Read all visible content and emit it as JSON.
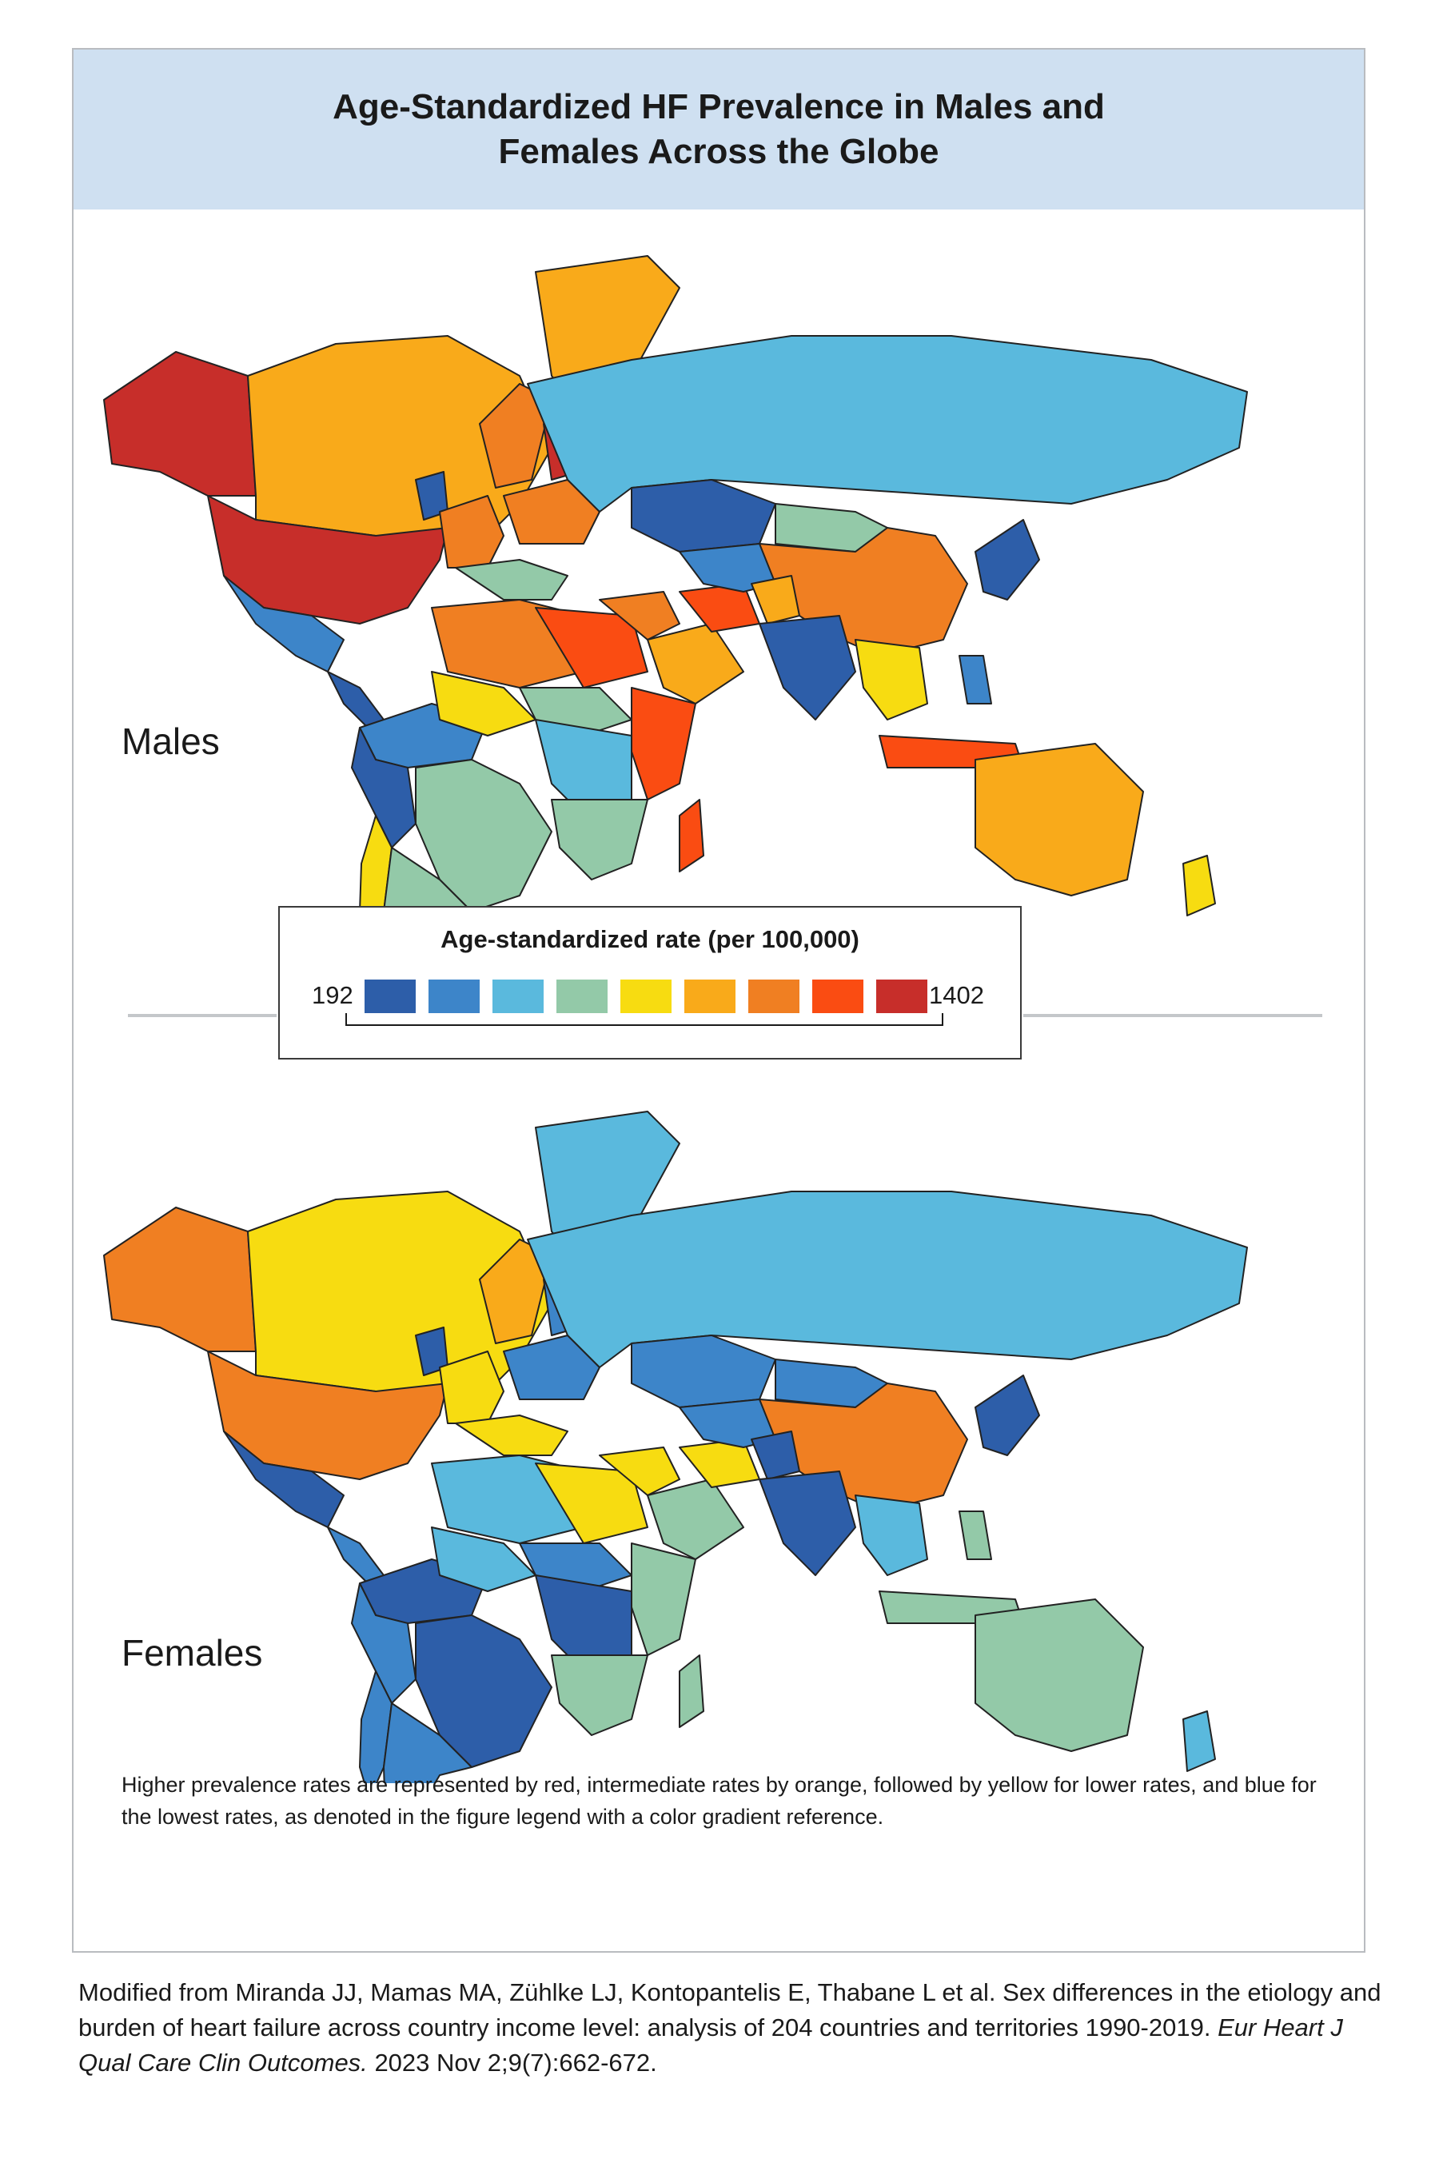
{
  "title": {
    "line1": "Age-Standardized HF Prevalence in Males and",
    "line2": "Females Across the Globe"
  },
  "panels": [
    {
      "label": "Males"
    },
    {
      "label": "Females"
    }
  ],
  "legend": {
    "title": "Age-standardized rate (per 100,000)",
    "min_label": "192",
    "max_label": "1402",
    "colors": [
      "#2d5ea9",
      "#3d85c9",
      "#5ab9dd",
      "#93c9a8",
      "#f7dc11",
      "#f9aa1a",
      "#f07f22",
      "#fa4c12",
      "#c72e2a"
    ]
  },
  "map_colors": {
    "males": {
      "alaska": "#c72e2a",
      "canada": "#f9aa1a",
      "greenland": "#f9aa1a",
      "usa": "#c72e2a",
      "mexico": "#3d85c9",
      "central_america": "#2d5ea9",
      "south_america_north": "#3d85c9",
      "brazil": "#93c9a8",
      "south_america_west": "#2d5ea9",
      "chile": "#f7dc11",
      "argentina": "#93c9a8",
      "uk_ireland": "#2d5ea9",
      "scandinavia": "#f07f22",
      "finland": "#c72e2a",
      "western_europe": "#f07f22",
      "eastern_europe": "#f07f22",
      "southern_europe": "#93c9a8",
      "russia": "#5ab9dd",
      "kazakhstan": "#2d5ea9",
      "mongolia": "#93c9a8",
      "china": "#f07f22",
      "korea_japan": "#2d5ea9",
      "north_africa": "#f07f22",
      "libya_egypt": "#fa4c12",
      "west_africa": "#f7dc11",
      "sahel": "#93c9a8",
      "central_africa": "#5ab9dd",
      "east_africa": "#fa4c12",
      "southern_africa": "#93c9a8",
      "madagascar": "#fa4c12",
      "middle_east": "#f07f22",
      "arabia": "#f9aa1a",
      "iran": "#fa4c12",
      "central_asia": "#3d85c9",
      "afghanistan": "#f9aa1a",
      "south_asia": "#2d5ea9",
      "southeast_asia": "#f7dc11",
      "indonesia": "#fa4c12",
      "philippines": "#3d85c9",
      "australia": "#f9aa1a",
      "new_zealand": "#f7dc11"
    },
    "females": {
      "alaska": "#f07f22",
      "canada": "#f7dc11",
      "greenland": "#5ab9dd",
      "usa": "#f07f22",
      "mexico": "#2d5ea9",
      "central_america": "#3d85c9",
      "south_america_north": "#2d5ea9",
      "brazil": "#2d5ea9",
      "south_america_west": "#3d85c9",
      "chile": "#3d85c9",
      "argentina": "#3d85c9",
      "uk_ireland": "#2d5ea9",
      "scandinavia": "#f9aa1a",
      "finland": "#3d85c9",
      "western_europe": "#f7dc11",
      "eastern_europe": "#3d85c9",
      "southern_europe": "#f7dc11",
      "russia": "#5ab9dd",
      "kazakhstan": "#3d85c9",
      "mongolia": "#3d85c9",
      "china": "#f07f22",
      "korea_japan": "#2d5ea9",
      "north_africa": "#5ab9dd",
      "libya_egypt": "#f7dc11",
      "west_africa": "#5ab9dd",
      "sahel": "#3d85c9",
      "central_africa": "#2d5ea9",
      "east_africa": "#93c9a8",
      "southern_africa": "#93c9a8",
      "madagascar": "#93c9a8",
      "middle_east": "#f7dc11",
      "arabia": "#93c9a8",
      "iran": "#f7dc11",
      "central_asia": "#3d85c9",
      "afghanistan": "#2d5ea9",
      "south_asia": "#2d5ea9",
      "southeast_asia": "#5ab9dd",
      "indonesia": "#93c9a8",
      "philippines": "#93c9a8",
      "australia": "#93c9a8",
      "new_zealand": "#5ab9dd"
    }
  },
  "note": "Higher prevalence rates are represented by red, intermediate rates by orange, followed by yellow for lower rates, and blue for the lowest rates, as denoted in the figure legend with a color gradient reference.",
  "citation": {
    "text": "Modified from Miranda JJ, Mamas MA, Zühlke LJ, Kontopantelis E, Thabane L et al. Sex differences in the etiology and burden of heart failure across country income level: analysis of 204 countries and territories 1990-2019.",
    "journal": "Eur Heart J Qual Care Clin Outcomes.",
    "details": "2023 Nov 2;9(7):662-672."
  }
}
